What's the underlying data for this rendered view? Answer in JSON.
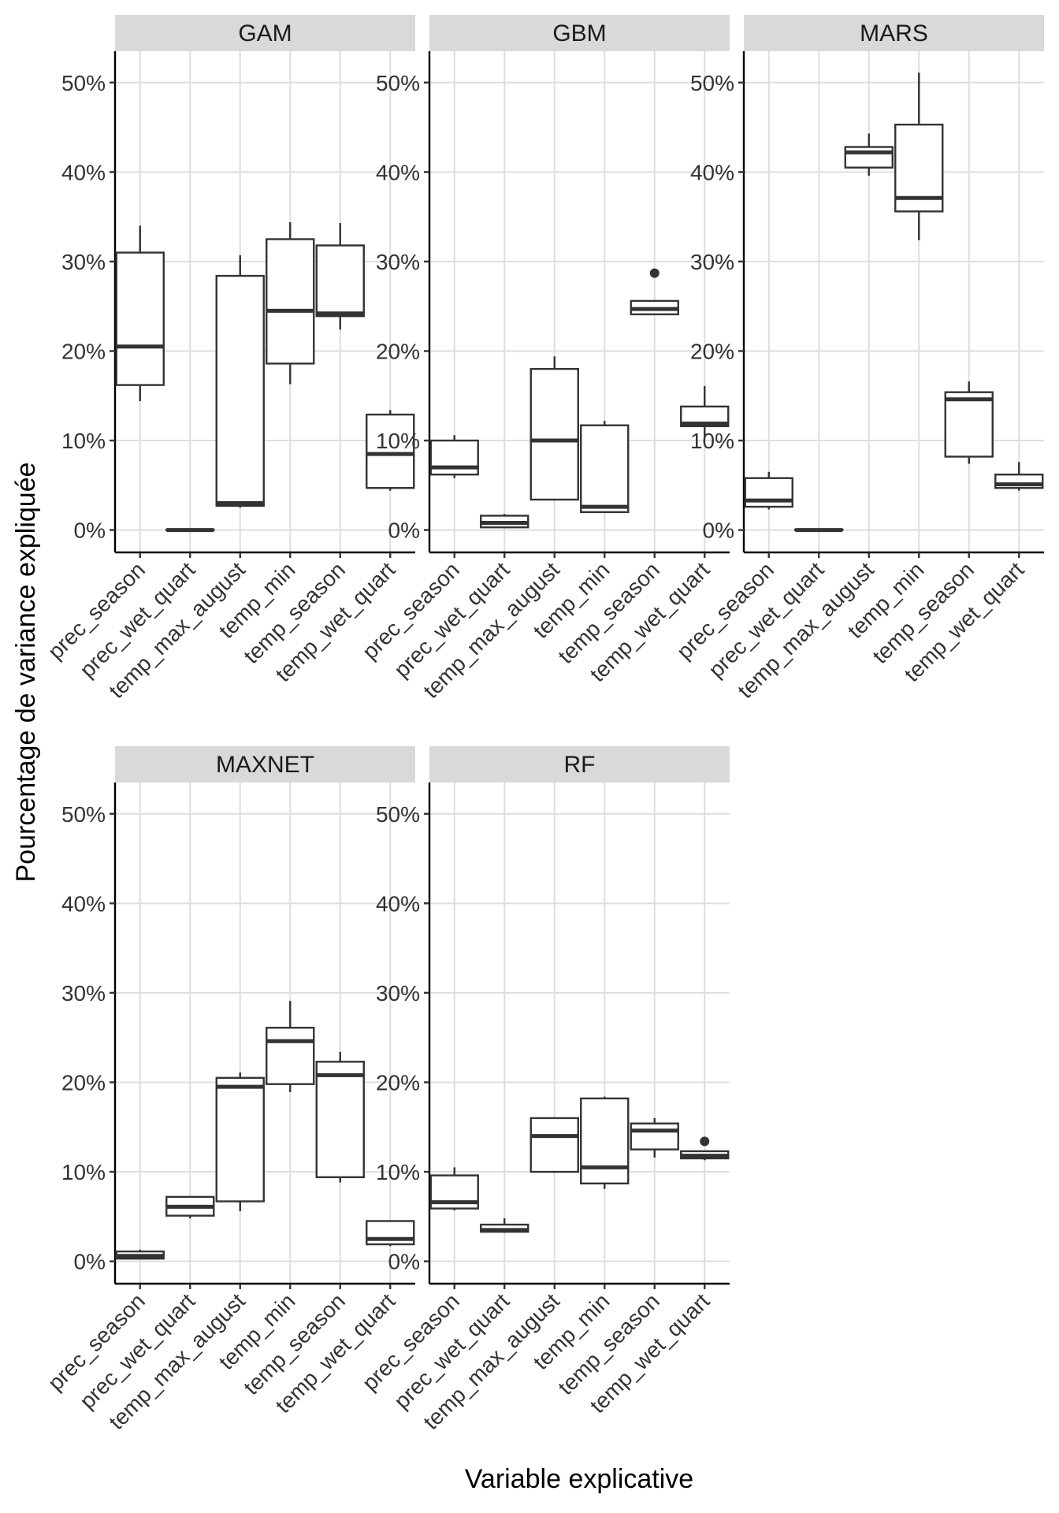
{
  "chart_data": {
    "type": "boxplot",
    "xlabel": "Variable explicative",
    "ylabel": "Pourcentage de variance expliquée",
    "ylim": [
      -2.5,
      53.5
    ],
    "y_ticks": [
      0,
      10,
      20,
      30,
      40,
      50
    ],
    "y_tick_labels": [
      "0%",
      "10%",
      "20%",
      "30%",
      "40%",
      "50%"
    ],
    "categories": [
      "prec_season",
      "prec_wet_quart",
      "temp_max_august",
      "temp_min",
      "temp_season",
      "temp_wet_quart"
    ],
    "panels": [
      {
        "name": "GAM",
        "boxes": [
          {
            "min": 14.4,
            "q1": 16.2,
            "median": 20.5,
            "q3": 31.0,
            "max": 34.0,
            "outliers": []
          },
          {
            "min": 0.0,
            "q1": 0.0,
            "median": 0.0,
            "q3": 0.05,
            "max": 0.1,
            "outliers": []
          },
          {
            "min": 2.5,
            "q1": 2.7,
            "median": 3.0,
            "q3": 28.4,
            "max": 30.7,
            "outliers": []
          },
          {
            "min": 16.3,
            "q1": 18.6,
            "median": 24.5,
            "q3": 32.5,
            "max": 34.4,
            "outliers": []
          },
          {
            "min": 22.4,
            "q1": 23.9,
            "median": 24.2,
            "q3": 31.8,
            "max": 34.3,
            "outliers": []
          },
          {
            "min": 4.4,
            "q1": 4.7,
            "median": 8.5,
            "q3": 12.9,
            "max": 13.4,
            "outliers": []
          }
        ]
      },
      {
        "name": "GBM",
        "boxes": [
          {
            "min": 5.8,
            "q1": 6.2,
            "median": 7.0,
            "q3": 10.0,
            "max": 10.6,
            "outliers": []
          },
          {
            "min": 0.2,
            "q1": 0.3,
            "median": 0.8,
            "q3": 1.6,
            "max": 1.8,
            "outliers": []
          },
          {
            "min": 3.3,
            "q1": 3.4,
            "median": 10.0,
            "q3": 18.0,
            "max": 19.4,
            "outliers": []
          },
          {
            "min": 1.9,
            "q1": 2.0,
            "median": 2.6,
            "q3": 11.7,
            "max": 12.2,
            "outliers": []
          },
          {
            "min": 24.0,
            "q1": 24.1,
            "median": 24.7,
            "q3": 25.6,
            "max": 25.7,
            "outliers": [
              28.7
            ]
          },
          {
            "min": 10.4,
            "q1": 11.6,
            "median": 11.9,
            "q3": 13.8,
            "max": 16.1,
            "outliers": []
          }
        ]
      },
      {
        "name": "MARS",
        "boxes": [
          {
            "min": 2.3,
            "q1": 2.6,
            "median": 3.3,
            "q3": 5.8,
            "max": 6.5,
            "outliers": []
          },
          {
            "min": 0.0,
            "q1": 0.0,
            "median": 0.0,
            "q3": 0.05,
            "max": 0.1,
            "outliers": []
          },
          {
            "min": 39.6,
            "q1": 40.5,
            "median": 42.2,
            "q3": 42.8,
            "max": 44.3,
            "outliers": []
          },
          {
            "min": 32.4,
            "q1": 35.6,
            "median": 37.1,
            "q3": 45.3,
            "max": 51.1,
            "outliers": []
          },
          {
            "min": 7.4,
            "q1": 8.2,
            "median": 14.6,
            "q3": 15.4,
            "max": 16.6,
            "outliers": []
          },
          {
            "min": 4.4,
            "q1": 4.7,
            "median": 5.1,
            "q3": 6.2,
            "max": 7.6,
            "outliers": []
          }
        ]
      },
      {
        "name": "MAXNET",
        "boxes": [
          {
            "min": 0.2,
            "q1": 0.3,
            "median": 0.6,
            "q3": 1.1,
            "max": 1.3,
            "outliers": []
          },
          {
            "min": 4.8,
            "q1": 5.1,
            "median": 6.1,
            "q3": 7.2,
            "max": 7.3,
            "outliers": []
          },
          {
            "min": 5.6,
            "q1": 6.7,
            "median": 19.5,
            "q3": 20.5,
            "max": 21.1,
            "outliers": []
          },
          {
            "min": 18.9,
            "q1": 19.8,
            "median": 24.6,
            "q3": 26.1,
            "max": 29.1,
            "outliers": []
          },
          {
            "min": 8.8,
            "q1": 9.4,
            "median": 20.8,
            "q3": 22.3,
            "max": 23.4,
            "outliers": []
          },
          {
            "min": 1.7,
            "q1": 1.9,
            "median": 2.5,
            "q3": 4.5,
            "max": 4.6,
            "outliers": []
          }
        ]
      },
      {
        "name": "RF",
        "boxes": [
          {
            "min": 5.7,
            "q1": 5.9,
            "median": 6.6,
            "q3": 9.6,
            "max": 10.5,
            "outliers": []
          },
          {
            "min": 3.2,
            "q1": 3.3,
            "median": 3.5,
            "q3": 4.1,
            "max": 4.8,
            "outliers": []
          },
          {
            "min": 9.9,
            "q1": 10.0,
            "median": 14.0,
            "q3": 16.0,
            "max": 16.1,
            "outliers": []
          },
          {
            "min": 8.1,
            "q1": 8.7,
            "median": 10.5,
            "q3": 18.2,
            "max": 18.4,
            "outliers": []
          },
          {
            "min": 11.6,
            "q1": 12.5,
            "median": 14.6,
            "q3": 15.4,
            "max": 16.0,
            "outliers": []
          },
          {
            "min": 11.3,
            "q1": 11.5,
            "median": 11.8,
            "q3": 12.3,
            "max": 12.4,
            "outliers": [
              13.4
            ]
          }
        ]
      }
    ]
  }
}
